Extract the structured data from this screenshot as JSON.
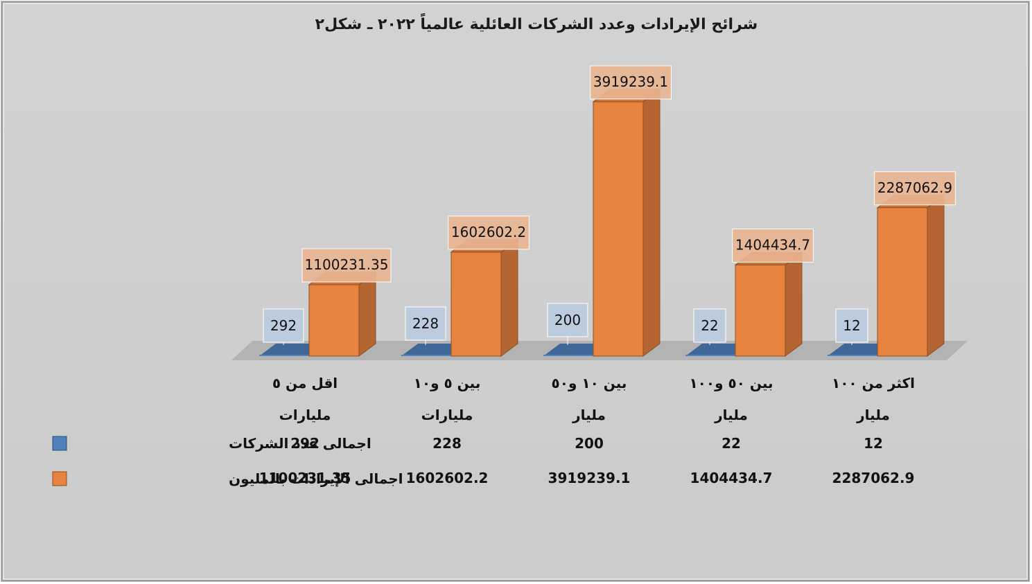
{
  "chart_data": {
    "type": "bar",
    "title": "شرائح الإيرادات وعدد الشركات العائلية عالمياً ٢٠٢٢ ـ شكل٢",
    "categories": [
      [
        "اقل من ٥",
        "مليارات"
      ],
      [
        "بين ٥ و١٠",
        "مليارات"
      ],
      [
        "بين ١٠ و٥٠",
        "مليار"
      ],
      [
        "بين ٥٠ و١٠٠",
        "مليار"
      ],
      [
        "اكثر من ١٠٠",
        "مليار"
      ]
    ],
    "series": [
      {
        "name": "اجمالى عدد الشركات",
        "color": "#4f81bd",
        "values": [
          292,
          228,
          200,
          22,
          12
        ],
        "labels": [
          "292",
          "228",
          "200",
          "22",
          "12"
        ]
      },
      {
        "name": "اجمالى الإيرادات بالمليون",
        "color": "#e8823f",
        "values": [
          1100231.35,
          1602602.2,
          3919239.1,
          1404434.7,
          2287062.9
        ],
        "labels": [
          "1100231.35",
          "1602602.2",
          "3919239.1",
          "1404434.7",
          "2287062.9"
        ]
      }
    ],
    "ylim": [
      0,
      4000000
    ],
    "grid": false,
    "legend": "data-table-left"
  }
}
